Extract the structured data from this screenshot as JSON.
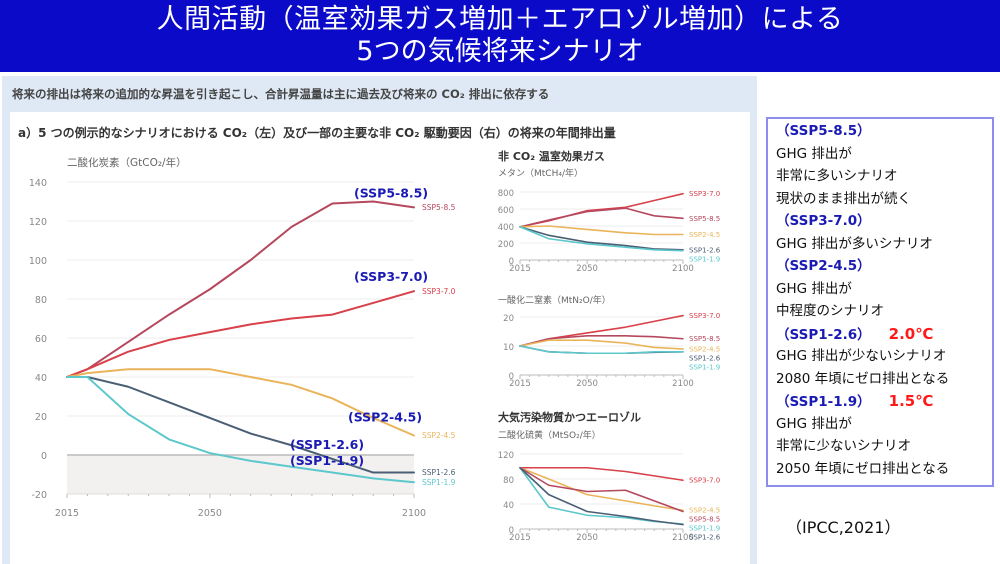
{
  "header": {
    "title_line1": "人間活動（温室効果ガス増加＋エアロゾル増加）による",
    "title_line2": "5つの気候将来シナリオ"
  },
  "panel": {
    "subtitle": "将来の排出は将来の追加的な昇温を引き起こし、合計昇温量は主に過去及び将来の CO₂ 排出に依存する",
    "section_title": "a）5 つの例示的なシナリオにおける CO₂（左）及び一部の主要な非 CO₂ 駆動要因（右）の将来の年間排出量"
  },
  "colors": {
    "header_bg": "#0a0ac8",
    "ssp585": "#b5485e",
    "ssp370": "#d8404a",
    "ssp245": "#e9b45a",
    "ssp126": "#4a5f75",
    "ssp119": "#5cc8cc",
    "annotation": "#1a1ab4",
    "temp": "#ff1a1a"
  },
  "chart_data": [
    {
      "type": "line",
      "title": "二酸化炭素（GtCO₂/年）",
      "xlabel": "",
      "ylabel": "二酸化炭素（GtCO₂/年）",
      "xlim": [
        2015,
        2100
      ],
      "ylim": [
        -20,
        140
      ],
      "xticks": [
        "2015",
        "2050",
        "2100"
      ],
      "yticks": [
        "140",
        "120",
        "100",
        "80",
        "60",
        "40",
        "20",
        "0",
        "-20"
      ],
      "grid": true,
      "series": [
        {
          "name": "SSP5-8.5",
          "key": "ssp585",
          "annotation": "(SSP5-8.5)",
          "x": [
            2015,
            2020,
            2030,
            2040,
            2050,
            2060,
            2070,
            2080,
            2090,
            2100
          ],
          "y": [
            40,
            44,
            58,
            72,
            85,
            100,
            117,
            129,
            130,
            127
          ]
        },
        {
          "name": "SSP3-7.0",
          "key": "ssp370",
          "annotation": "(SSP3-7.0)",
          "x": [
            2015,
            2020,
            2030,
            2040,
            2050,
            2060,
            2070,
            2080,
            2090,
            2100
          ],
          "y": [
            40,
            44,
            53,
            59,
            63,
            67,
            70,
            72,
            78,
            84
          ]
        },
        {
          "name": "SSP2-4.5",
          "key": "ssp245",
          "annotation": "(SSP2-4.5)",
          "x": [
            2015,
            2020,
            2030,
            2040,
            2050,
            2060,
            2070,
            2080,
            2090,
            2100
          ],
          "y": [
            40,
            42,
            44,
            44,
            44,
            40,
            36,
            29,
            19,
            10
          ]
        },
        {
          "name": "SSP1-2.6",
          "key": "ssp126",
          "annotation": "(SSP1-2.6)",
          "x": [
            2015,
            2020,
            2030,
            2040,
            2050,
            2060,
            2070,
            2080,
            2090,
            2100
          ],
          "y": [
            40,
            40,
            35,
            27,
            19,
            11,
            5,
            -2,
            -9,
            -9
          ]
        },
        {
          "name": "SSP1-1.9",
          "key": "ssp119",
          "annotation": "(SSP1-1.9)",
          "x": [
            2015,
            2020,
            2030,
            2040,
            2050,
            2060,
            2070,
            2080,
            2090,
            2100
          ],
          "y": [
            40,
            40,
            21,
            8,
            1,
            -3,
            -6,
            -9,
            -12,
            -14
          ]
        }
      ]
    },
    {
      "type": "line",
      "group_title": "非 CO₂ 温室効果ガス",
      "title": "メタン（MtCH₄/年）",
      "xlim": [
        2015,
        2100
      ],
      "ylim": [
        0,
        800
      ],
      "xticks": [
        "2015",
        "2050",
        "2100"
      ],
      "yticks": [
        "800",
        "600",
        "400",
        "200",
        "0"
      ],
      "grid": true,
      "series": [
        {
          "name": "SSP3-7.0",
          "key": "ssp370",
          "x": [
            2015,
            2030,
            2050,
            2070,
            2085,
            2100
          ],
          "y": [
            390,
            460,
            580,
            620,
            700,
            780
          ]
        },
        {
          "name": "SSP5-8.5",
          "key": "ssp585",
          "x": [
            2015,
            2030,
            2050,
            2070,
            2085,
            2100
          ],
          "y": [
            390,
            470,
            570,
            610,
            520,
            490
          ]
        },
        {
          "name": "SSP2-4.5",
          "key": "ssp245",
          "x": [
            2015,
            2030,
            2050,
            2070,
            2085,
            2100
          ],
          "y": [
            390,
            400,
            360,
            320,
            300,
            300
          ]
        },
        {
          "name": "SSP1-2.6",
          "key": "ssp126",
          "x": [
            2015,
            2030,
            2050,
            2070,
            2085,
            2100
          ],
          "y": [
            390,
            290,
            210,
            170,
            130,
            120
          ]
        },
        {
          "name": "SSP1-1.9",
          "key": "ssp119",
          "x": [
            2015,
            2030,
            2050,
            2070,
            2085,
            2100
          ],
          "y": [
            390,
            250,
            190,
            150,
            120,
            110
          ]
        }
      ]
    },
    {
      "type": "line",
      "title": "一酸化二窒素（MtN₂O/年）",
      "xlim": [
        2015,
        2100
      ],
      "ylim": [
        0,
        20
      ],
      "xticks": [
        "2015",
        "2050",
        "2100"
      ],
      "yticks": [
        "20",
        "10",
        "0"
      ],
      "grid": true,
      "series": [
        {
          "name": "SSP3-7.0",
          "key": "ssp370",
          "x": [
            2015,
            2030,
            2050,
            2070,
            2085,
            2100
          ],
          "y": [
            10,
            12.5,
            14.5,
            16.5,
            18.5,
            20.5
          ]
        },
        {
          "name": "SSP5-8.5",
          "key": "ssp585",
          "x": [
            2015,
            2030,
            2050,
            2070,
            2085,
            2100
          ],
          "y": [
            10,
            12.5,
            13.5,
            13.5,
            13.2,
            12.5
          ]
        },
        {
          "name": "SSP2-4.5",
          "key": "ssp245",
          "x": [
            2015,
            2030,
            2050,
            2070,
            2085,
            2100
          ],
          "y": [
            10,
            12,
            12,
            11,
            9.5,
            9
          ]
        },
        {
          "name": "SSP1-2.6",
          "key": "ssp126",
          "x": [
            2015,
            2030,
            2050,
            2070,
            2085,
            2100
          ],
          "y": [
            10,
            8,
            7.5,
            7.5,
            7.8,
            8
          ]
        },
        {
          "name": "SSP1-1.9",
          "key": "ssp119",
          "x": [
            2015,
            2030,
            2050,
            2070,
            2085,
            2100
          ],
          "y": [
            10,
            8,
            7.5,
            7.5,
            8,
            8
          ]
        }
      ]
    },
    {
      "type": "line",
      "group_title": "大気汚染物質かつエーロゾル",
      "title": "二酸化硫黄（MtSO₂/年）",
      "xlim": [
        2015,
        2100
      ],
      "ylim": [
        0,
        120
      ],
      "xticks": [
        "2015",
        "2050",
        "2100"
      ],
      "yticks": [
        "120",
        "80",
        "40",
        "0"
      ],
      "grid": true,
      "series": [
        {
          "name": "SSP3-7.0",
          "key": "ssp370",
          "x": [
            2015,
            2030,
            2050,
            2070,
            2085,
            2100
          ],
          "y": [
            98,
            98,
            98,
            92,
            85,
            78
          ]
        },
        {
          "name": "SSP2-4.5",
          "key": "ssp245",
          "x": [
            2015,
            2030,
            2050,
            2070,
            2085,
            2100
          ],
          "y": [
            98,
            80,
            55,
            45,
            37,
            30
          ]
        },
        {
          "name": "SSP5-8.5",
          "key": "ssp585",
          "x": [
            2015,
            2030,
            2050,
            2070,
            2085,
            2100
          ],
          "y": [
            98,
            70,
            60,
            62,
            45,
            28
          ]
        },
        {
          "name": "SSP1-1.9",
          "key": "ssp119",
          "x": [
            2015,
            2030,
            2050,
            2070,
            2085,
            2100
          ],
          "y": [
            98,
            35,
            22,
            18,
            12,
            8
          ]
        },
        {
          "name": "SSP1-2.6",
          "key": "ssp126",
          "x": [
            2015,
            2030,
            2050,
            2070,
            2085,
            2100
          ],
          "y": [
            98,
            55,
            28,
            20,
            13,
            7
          ]
        }
      ]
    }
  ],
  "scenario_box": {
    "lines": [
      {
        "text": "（SSP5-8.5）",
        "style": "ssp"
      },
      {
        "text": "GHG 排出が",
        "style": "plain"
      },
      {
        "text": "非常に多いシナリオ",
        "style": "plain"
      },
      {
        "text": "現状のまま排出が続く",
        "style": "plain"
      },
      {
        "text": "（SSP3-7.0）",
        "style": "ssp"
      },
      {
        "text": "GHG 排出が多いシナリオ",
        "style": "plain"
      },
      {
        "text": "（SSP2-4.5）",
        "style": "ssp"
      },
      {
        "text": "GHG 排出が",
        "style": "plain"
      },
      {
        "text": "中程度のシナリオ",
        "style": "plain"
      },
      {
        "text": "（SSP1-2.6）",
        "style": "ssp",
        "temp": "2.0℃"
      },
      {
        "text": "GHG 排出が少ないシナリオ",
        "style": "plain"
      },
      {
        "text": "2080 年頃にゼロ排出となる",
        "style": "plain"
      },
      {
        "text": "（SSP1-1.9）",
        "style": "ssp",
        "temp": "1.5℃"
      },
      {
        "text": "GHG 排出が",
        "style": "plain"
      },
      {
        "text": "非常に少ないシナリオ",
        "style": "plain"
      },
      {
        "text": "2050 年頃にゼロ排出となる",
        "style": "plain"
      }
    ]
  },
  "citation": "（IPCC,2021）"
}
